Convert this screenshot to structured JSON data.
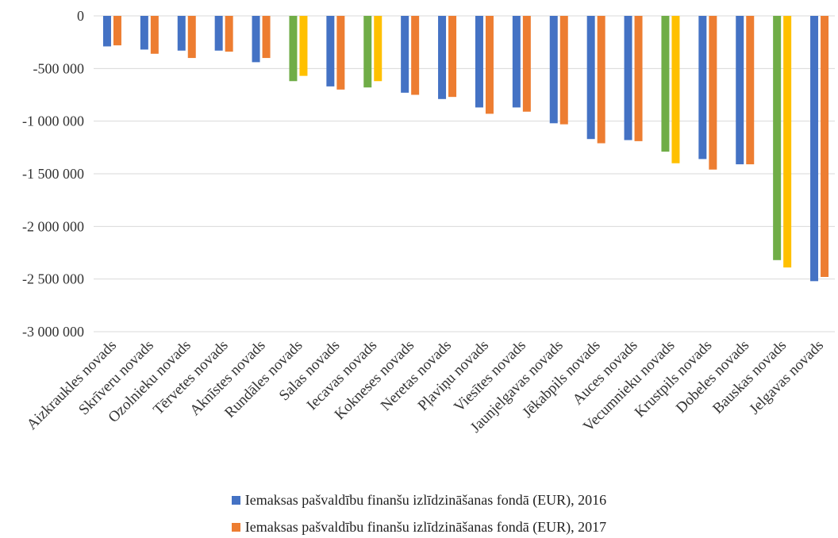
{
  "chart_data": {
    "type": "bar",
    "categories": [
      "Aizkraukles novads",
      "Skrīveru novads",
      "Ozolnieku novads",
      "Tērvetes novads",
      "Aknīstes novads",
      "Rundāles novads",
      "Salas novads",
      "Iecavas novads",
      "Kokneses novads",
      "Neretas novads",
      "Pļaviņu novads",
      "Viesītes novads",
      "Jaunjelgavas novads",
      "Jēkabpils novads",
      "Auces novads",
      "Vecumnieku novads",
      "Krustpils novads",
      "Dobeles novads",
      "Bauskas novads",
      "Jelgavas novads"
    ],
    "series": [
      {
        "name": "Iemaksas pašvaldību finanšu izlīdzināšanas fondā (EUR), 2016",
        "color": "#4472C4",
        "values": [
          -290000,
          -320000,
          -330000,
          -330000,
          -440000,
          -620000,
          -670000,
          -680000,
          -730000,
          -790000,
          -870000,
          -870000,
          -1020000,
          -1170000,
          -1180000,
          -1290000,
          -1360000,
          -1410000,
          -2320000,
          -2520000
        ]
      },
      {
        "name": "Iemaksas pašvaldību finanšu izlīdzināšanas fondā (EUR), 2017",
        "color": "#ED7D31",
        "values": [
          -280000,
          -360000,
          -400000,
          -340000,
          -400000,
          -570000,
          -700000,
          -620000,
          -750000,
          -770000,
          -930000,
          -910000,
          -1030000,
          -1210000,
          -1190000,
          -1400000,
          -1460000,
          -1410000,
          -2390000,
          -2480000
        ]
      }
    ],
    "highlight_categories": [
      5,
      7,
      15,
      18
    ],
    "highlight_colors": {
      "2016": "#70AD47",
      "2017": "#FFC000"
    },
    "ylim": [
      -3000000,
      0
    ],
    "yticks": [
      0,
      -500000,
      -1000000,
      -1500000,
      -2000000,
      -2500000,
      -3000000
    ],
    "ytick_labels": [
      "0",
      "-500 000",
      "-1 000 000",
      "-1 500 000",
      "-2 000 000",
      "-2 500 000",
      "-3 000 000"
    ],
    "grid": true,
    "legend_position": "bottom"
  }
}
